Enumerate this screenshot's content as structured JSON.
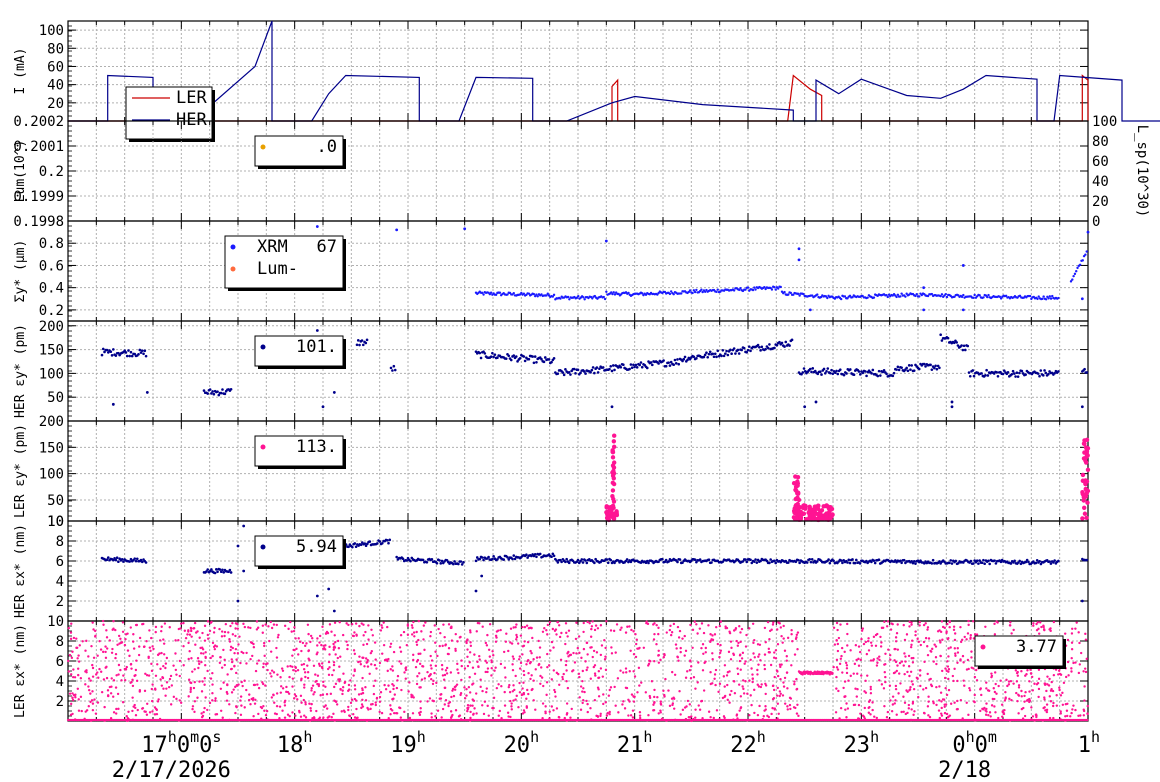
{
  "chart_data": [
    {
      "type": "line",
      "ylabel": "I (mA)",
      "ylim": [
        0,
        110
      ],
      "yticks": [
        "20",
        "40",
        "60",
        "80",
        "100"
      ],
      "grid": true,
      "legend_placement": "top-left",
      "series": [
        {
          "name": "LER",
          "color": "#cc0000",
          "points": [
            [
              16.0,
              0
            ],
            [
              20.8,
              0
            ],
            [
              20.8,
              38
            ],
            [
              20.85,
              45
            ],
            [
              20.85,
              0
            ],
            [
              22.35,
              0
            ],
            [
              22.4,
              50
            ],
            [
              22.55,
              35
            ],
            [
              22.65,
              28
            ],
            [
              22.65,
              0
            ],
            [
              24.95,
              0
            ],
            [
              24.95,
              50
            ],
            [
              25.0,
              45
            ],
            [
              25.0,
              0
            ]
          ]
        },
        {
          "name": "HER",
          "color": "#00008b",
          "points": [
            [
              16.0,
              0
            ],
            [
              16.35,
              0
            ],
            [
              16.35,
              50
            ],
            [
              16.75,
              48
            ],
            [
              16.75,
              0
            ],
            [
              17.1,
              0
            ],
            [
              17.65,
              60
            ],
            [
              17.8,
              110
            ],
            [
              17.8,
              0
            ],
            [
              18.15,
              0
            ],
            [
              18.3,
              30
            ],
            [
              18.45,
              50
            ],
            [
              19.1,
              48
            ],
            [
              19.1,
              0
            ],
            [
              19.45,
              0
            ],
            [
              19.6,
              48
            ],
            [
              20.1,
              47
            ],
            [
              20.1,
              0
            ],
            [
              20.4,
              0
            ],
            [
              20.8,
              20
            ],
            [
              21.0,
              27
            ],
            [
              21.6,
              18
            ],
            [
              22.4,
              12
            ],
            [
              22.4,
              0
            ],
            [
              22.6,
              0
            ],
            [
              22.6,
              45
            ],
            [
              22.8,
              30
            ],
            [
              23.0,
              46
            ],
            [
              23.4,
              28
            ],
            [
              23.7,
              25
            ],
            [
              23.9,
              35
            ],
            [
              24.1,
              50
            ],
            [
              24.55,
              46
            ],
            [
              24.55,
              0
            ],
            [
              24.7,
              0
            ],
            [
              24.75,
              50
            ],
            [
              25.3,
              45
            ],
            [
              25.3,
              0
            ],
            [
              25.95,
              0
            ],
            [
              26.0,
              50
            ],
            [
              26.05,
              48
            ],
            [
              26.05,
              0
            ]
          ]
        }
      ]
    },
    {
      "type": "scatter",
      "ylabel": "Lum(10^)",
      "y2label": "L_sp(10^30)",
      "ylim": [
        0.1998,
        0.2002
      ],
      "yticks": [
        "0.1998",
        "0.1999",
        "0.2",
        "0.2001",
        "0.2002"
      ],
      "y2ticks": [
        "0",
        "20",
        "40",
        "60",
        "80",
        "100"
      ],
      "legend": {
        "value": ".0",
        "color": "#e8a000"
      }
    },
    {
      "type": "scatter",
      "ylabel": "Σy* (μm)",
      "ylim": [
        0.1,
        1.0
      ],
      "yticks": [
        "0.2",
        "0.4",
        "0.6",
        "0.8"
      ],
      "series": [
        {
          "name": "XRM",
          "value": "67",
          "color": "#1a1aff"
        },
        {
          "name": "Lum-",
          "color": "#ff6a3d"
        }
      ]
    },
    {
      "type": "scatter",
      "ylabel": "HER εy* (pm)",
      "ylim": [
        0,
        210
      ],
      "yticks": [
        "50",
        "100",
        "150",
        "200"
      ],
      "legend": {
        "value": "101.",
        "color": "#00008b"
      }
    },
    {
      "type": "scatter",
      "ylabel": "LER εy* (pm)",
      "ylim": [
        10,
        200
      ],
      "yticks": [
        "10",
        "50",
        "100",
        "150",
        "200"
      ],
      "legend": {
        "value": "113.",
        "color": "#ff1493"
      }
    },
    {
      "type": "scatter",
      "ylabel": "HER εx* (nm)",
      "ylim": [
        0,
        10
      ],
      "yticks": [
        "2",
        "4",
        "6",
        "8",
        "10"
      ],
      "legend": {
        "value": "5.94",
        "color": "#00008b"
      }
    },
    {
      "type": "scatter",
      "ylabel": "LER εx* (nm)",
      "ylim": [
        0,
        10
      ],
      "yticks": [
        "2",
        "4",
        "6",
        "8",
        "10"
      ],
      "legend": {
        "value": "3.77",
        "color": "#ff1493"
      }
    }
  ],
  "x_axis": {
    "range_hours": [
      16.0,
      25.0
    ],
    "tick_labels": [
      {
        "hour": 17,
        "text": "17h0m0s"
      },
      {
        "hour": 18,
        "text": "18h"
      },
      {
        "hour": 19,
        "text": "19h"
      },
      {
        "hour": 20,
        "text": "20h"
      },
      {
        "hour": 21,
        "text": "21h"
      },
      {
        "hour": 22,
        "text": "22h"
      },
      {
        "hour": 23,
        "text": "23h"
      },
      {
        "hour": 24,
        "text": "0h0m"
      },
      {
        "hour": 25,
        "text": "1h"
      }
    ],
    "date_labels": [
      {
        "hour": 17,
        "text": "2/17/2026"
      },
      {
        "hour": 24,
        "text": "2/18"
      }
    ]
  }
}
